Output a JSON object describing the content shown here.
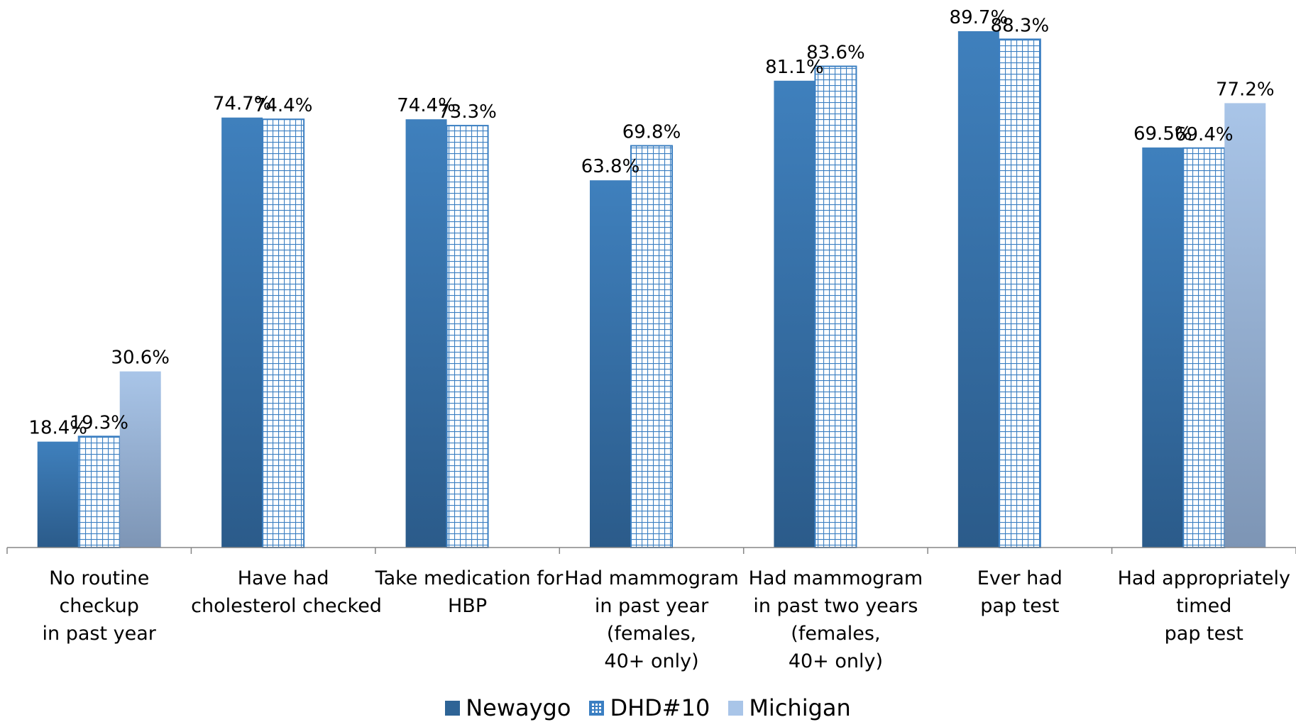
{
  "chart_data": {
    "type": "bar",
    "categories": [
      [
        "No routine",
        "checkup",
        "in past year"
      ],
      [
        "Have had",
        "cholesterol checked"
      ],
      [
        "Take medication for",
        "HBP"
      ],
      [
        "Had mammogram",
        "in past year",
        "(females,",
        "40+ only)"
      ],
      [
        "Had mammogram",
        "in past two years",
        "(females,",
        "40+ only)"
      ],
      [
        "Ever had",
        "pap test"
      ],
      [
        "Had appropriately",
        "timed",
        "pap test"
      ]
    ],
    "series": [
      {
        "name": "Newaygo",
        "values": [
          18.4,
          74.7,
          74.4,
          63.8,
          81.1,
          89.7,
          69.5
        ],
        "labels": [
          "18.4%",
          "74.7%",
          "74.4%",
          "63.8%",
          "81.1%",
          "89.7%",
          "69.5%"
        ]
      },
      {
        "name": "DHD#10",
        "values": [
          19.3,
          74.4,
          73.3,
          69.8,
          83.6,
          88.3,
          69.4
        ],
        "labels": [
          "19.3%",
          "74.4%",
          "73.3%",
          "69.8%",
          "83.6%",
          "88.3%",
          "69.4%"
        ]
      },
      {
        "name": "Michigan",
        "values": [
          30.6,
          null,
          null,
          null,
          null,
          null,
          77.2
        ],
        "labels": [
          "30.6%",
          null,
          null,
          null,
          null,
          null,
          "77.2%"
        ]
      }
    ],
    "title": "",
    "xlabel": "",
    "ylabel": "",
    "ylim": [
      0,
      100
    ],
    "grid": false,
    "legend_position": "bottom",
    "colors": {
      "newaygo_top": "#3f80bd",
      "newaygo_bottom": "#2b5b8a",
      "dhd_fill": "#ffffff",
      "dhd_line": "#3b7fc2",
      "michigan_top": "#a9c5e8",
      "michigan_bottom": "#7d95b5",
      "axis": "#868686"
    }
  },
  "legend": {
    "items": [
      {
        "label": "Newaygo"
      },
      {
        "label": "DHD#10"
      },
      {
        "label": "Michigan"
      }
    ]
  }
}
